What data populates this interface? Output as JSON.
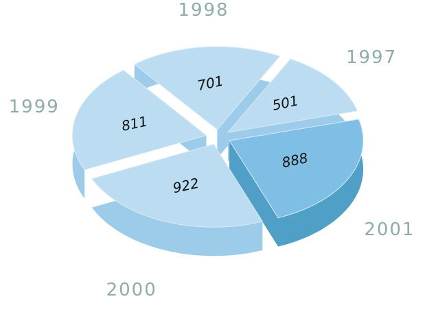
{
  "chart_data": {
    "type": "pie",
    "categories": [
      "1997",
      "1998",
      "1999",
      "2000",
      "2001"
    ],
    "values": [
      501,
      701,
      811,
      922,
      888
    ],
    "colors": [
      "#bcdcf2",
      "#bcdcf2",
      "#bcdcf2",
      "#bcdcf2",
      "#7fbfe5"
    ],
    "side_colors": [
      "#9ccce9",
      "#9ccce9",
      "#9ccce9",
      "#9ccce9",
      "#4f9fc6"
    ]
  }
}
